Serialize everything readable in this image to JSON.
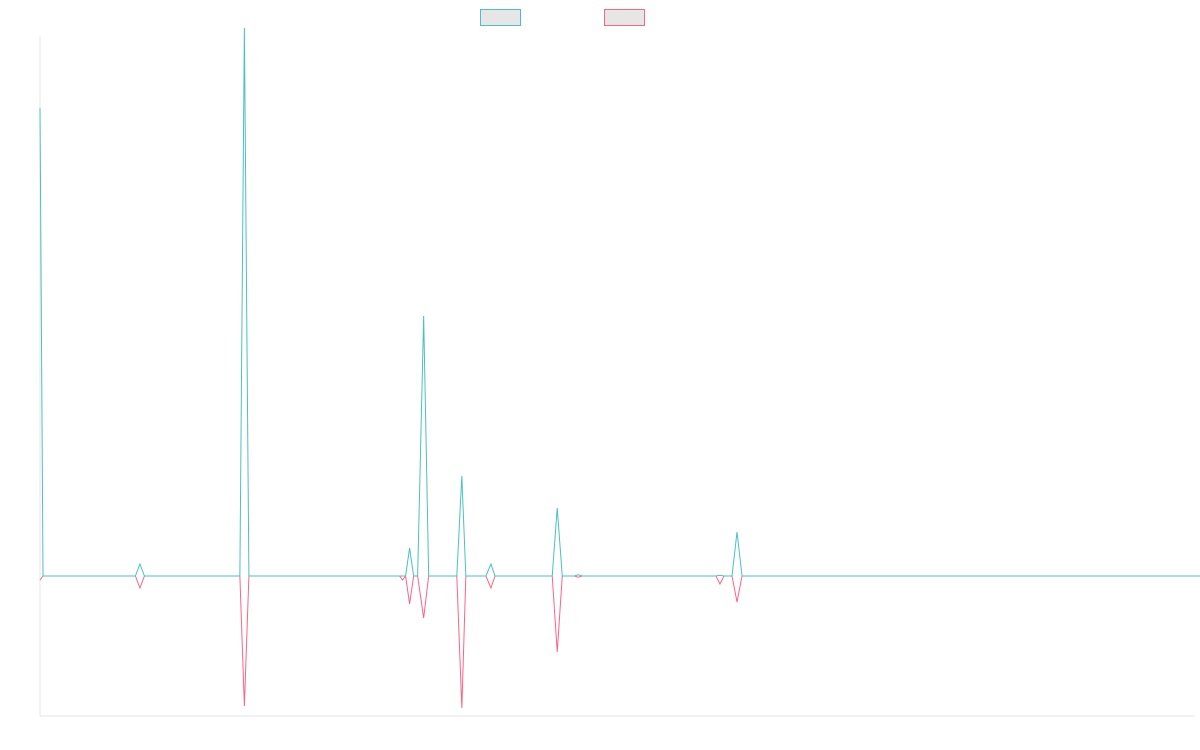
{
  "chart_data": {
    "type": "line",
    "title": "",
    "xlabel": "",
    "ylabel": "",
    "grid": false,
    "legend_placement": "top",
    "xlim": [
      0,
      1150
    ],
    "ylim": [
      -0.35,
      1.35
    ],
    "baseline": 0,
    "series": [
      {
        "color": "#4bc0c0",
        "legend_fill": "#e6e6e6",
        "points": [
          [
            0,
            1.17
          ],
          [
            3,
            0
          ],
          [
            95,
            0
          ],
          [
            99.5,
            0.03
          ],
          [
            104,
            0
          ],
          [
            199,
            0
          ],
          [
            203.5,
            1.37
          ],
          [
            208,
            0
          ],
          [
            364,
            0
          ],
          [
            368,
            0.07
          ],
          [
            372,
            0
          ],
          [
            376,
            0
          ],
          [
            382,
            0.65
          ],
          [
            387,
            0
          ],
          [
            415,
            0
          ],
          [
            420,
            0.25
          ],
          [
            424,
            0
          ],
          [
            444,
            0
          ],
          [
            449,
            0.03
          ],
          [
            453,
            0
          ],
          [
            510,
            0
          ],
          [
            515,
            0.17
          ],
          [
            520,
            0
          ],
          [
            532,
            0
          ],
          [
            536,
            0.003
          ],
          [
            540,
            0
          ],
          [
            673,
            0
          ],
          [
            677,
            0.002
          ],
          [
            681,
            0
          ],
          [
            689,
            0
          ],
          [
            694,
            0.11
          ],
          [
            699,
            0
          ],
          [
            1155,
            0
          ]
        ]
      },
      {
        "color": "#ff6384",
        "legend_fill": "#e6e6e6",
        "points": [
          [
            0,
            -0.01
          ],
          [
            3,
            0
          ],
          [
            95,
            0
          ],
          [
            99.5,
            -0.03
          ],
          [
            104,
            0
          ],
          [
            199,
            0
          ],
          [
            203.5,
            -0.325
          ],
          [
            208,
            0
          ],
          [
            358,
            0
          ],
          [
            361,
            -0.01
          ],
          [
            364,
            0
          ],
          [
            368,
            -0.07
          ],
          [
            372,
            0
          ],
          [
            376,
            0
          ],
          [
            382,
            -0.105
          ],
          [
            387,
            0
          ],
          [
            415,
            0
          ],
          [
            420,
            -0.33
          ],
          [
            424,
            0
          ],
          [
            444,
            0
          ],
          [
            449,
            -0.03
          ],
          [
            453,
            0
          ],
          [
            510,
            0
          ],
          [
            515,
            -0.19
          ],
          [
            520,
            0
          ],
          [
            532,
            0
          ],
          [
            536,
            -0.003
          ],
          [
            540,
            0
          ],
          [
            673,
            0
          ],
          [
            677,
            -0.02
          ],
          [
            681,
            0
          ],
          [
            689,
            0
          ],
          [
            694,
            -0.065
          ],
          [
            699,
            0
          ],
          [
            1155,
            0
          ]
        ]
      }
    ]
  }
}
